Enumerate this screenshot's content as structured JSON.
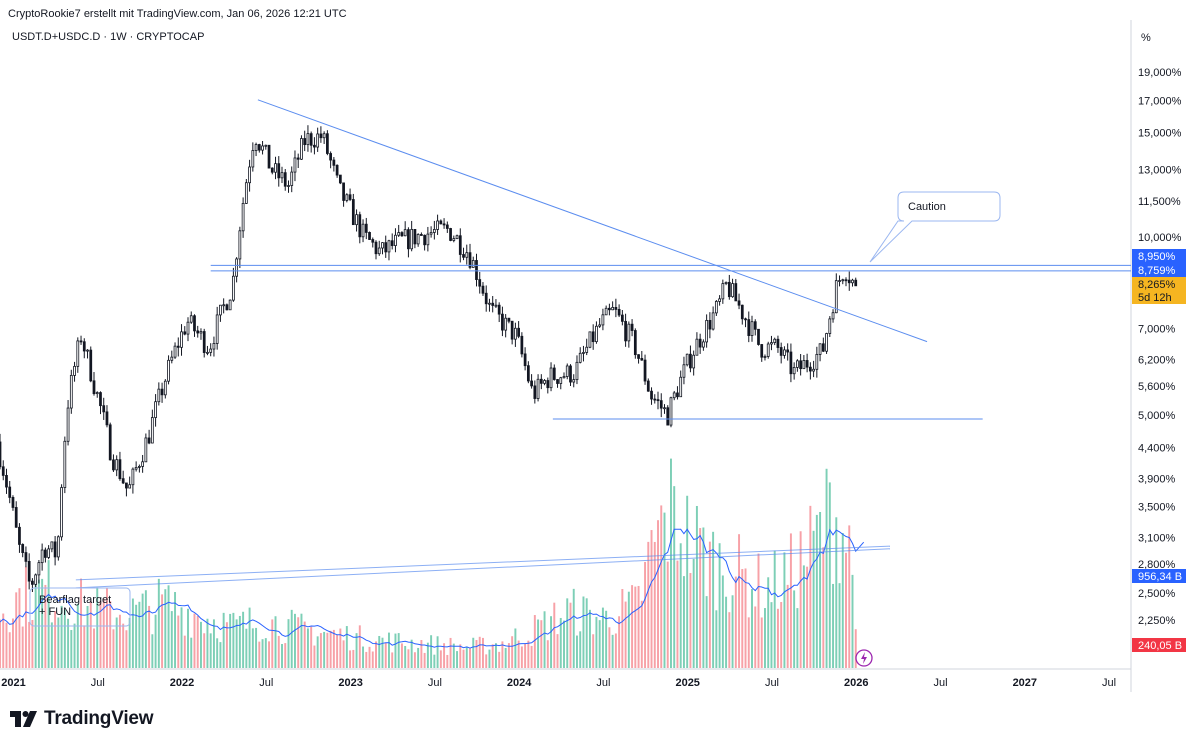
{
  "header": {
    "credit": "CryptoRookie7 erstellt mit TradingView.com, Jan 06, 2026 12:21 UTC",
    "symbol": "USDT.D+USDC.D · 1W · CRYPTOCAP"
  },
  "brand": {
    "name": "TradingView",
    "icon": "tradingview-logo-icon",
    "color": "#131722"
  },
  "colors": {
    "up": "#ffffff",
    "down": "#131722",
    "trendline": "#5b8def",
    "vol_up": "#7dcfb6",
    "vol_down": "#f7a1a7",
    "ma": "#2962ff",
    "price_tag": "#f5b521",
    "level_tag": "#2962ff",
    "vol_tag": "#f23645"
  },
  "chart_data": {
    "type": "candlestick",
    "title": "USDT.D+USDC.D · 1W · CRYPTOCAP",
    "yscale": "log",
    "ylim": [
      2.0,
      21.5
    ],
    "y_unit": "%",
    "y_ticks": [
      "19,000%",
      "17,000%",
      "15,000%",
      "13,000%",
      "11,500%",
      "10,000%",
      "7,000%",
      "6,200%",
      "5,600%",
      "5,000%",
      "4,400%",
      "3,900%",
      "3,500%",
      "3,100%",
      "2,800%",
      "2,500%",
      "2,250%"
    ],
    "y_tick_values": [
      19.0,
      17.0,
      15.0,
      13.0,
      11.5,
      10.0,
      7.0,
      6.2,
      5.6,
      5.0,
      4.4,
      3.9,
      3.5,
      3.1,
      2.8,
      2.5,
      2.25
    ],
    "x_ticks": [
      "2021",
      "Jul",
      "2022",
      "Jul",
      "2023",
      "Jul",
      "2024",
      "Jul",
      "2025",
      "Jul",
      "2026",
      "Jul",
      "2027",
      "Jul"
    ],
    "x_tick_dates": [
      2021.0,
      2021.5,
      2022.0,
      2022.5,
      2023.0,
      2023.5,
      2024.0,
      2024.5,
      2025.0,
      2025.5,
      2026.0,
      2026.5,
      2027.0,
      2027.5
    ],
    "xlim": [
      2020.92,
      2027.63
    ],
    "price_path": [
      [
        2020.92,
        4.5
      ],
      [
        2021.05,
        3.0
      ],
      [
        2021.12,
        2.55
      ],
      [
        2021.2,
        3.0
      ],
      [
        2021.28,
        2.9
      ],
      [
        2021.34,
        5.2
      ],
      [
        2021.42,
        6.8
      ],
      [
        2021.5,
        5.6
      ],
      [
        2021.6,
        4.3
      ],
      [
        2021.7,
        3.7
      ],
      [
        2021.82,
        4.6
      ],
      [
        2021.95,
        6.1
      ],
      [
        2022.05,
        7.2
      ],
      [
        2022.18,
        6.5
      ],
      [
        2022.32,
        8.3
      ],
      [
        2022.45,
        15.0
      ],
      [
        2022.55,
        13.0
      ],
      [
        2022.65,
        12.2
      ],
      [
        2022.75,
        14.6
      ],
      [
        2022.85,
        14.8
      ],
      [
        2022.95,
        12.0
      ],
      [
        2023.1,
        10.0
      ],
      [
        2023.2,
        9.4
      ],
      [
        2023.3,
        9.8
      ],
      [
        2023.45,
        10.1
      ],
      [
        2023.6,
        10.3
      ],
      [
        2023.72,
        9.4
      ],
      [
        2023.85,
        7.5
      ],
      [
        2024.0,
        6.8
      ],
      [
        2024.1,
        5.4
      ],
      [
        2024.2,
        5.8
      ],
      [
        2024.35,
        5.9
      ],
      [
        2024.5,
        7.1
      ],
      [
        2024.58,
        7.5
      ],
      [
        2024.7,
        6.6
      ],
      [
        2024.8,
        5.4
      ],
      [
        2024.9,
        5.0
      ],
      [
        2025.05,
        6.4
      ],
      [
        2025.2,
        7.6
      ],
      [
        2025.25,
        8.3
      ],
      [
        2025.35,
        7.4
      ],
      [
        2025.45,
        6.5
      ],
      [
        2025.55,
        6.5
      ],
      [
        2025.65,
        5.9
      ],
      [
        2025.75,
        6.2
      ],
      [
        2025.82,
        6.4
      ],
      [
        2025.9,
        8.2
      ],
      [
        2025.95,
        8.9
      ],
      [
        2026.01,
        8.265
      ]
    ],
    "volume_path": [
      [
        2020.92,
        45
      ],
      [
        2021.05,
        55
      ],
      [
        2021.2,
        60
      ],
      [
        2021.35,
        50
      ],
      [
        2021.5,
        45
      ],
      [
        2021.7,
        42
      ],
      [
        2021.9,
        50
      ],
      [
        2022.1,
        40
      ],
      [
        2022.3,
        32
      ],
      [
        2022.5,
        36
      ],
      [
        2022.7,
        30
      ],
      [
        2022.9,
        26
      ],
      [
        2023.1,
        22
      ],
      [
        2023.3,
        20
      ],
      [
        2023.5,
        18
      ],
      [
        2023.7,
        16
      ],
      [
        2023.9,
        19
      ],
      [
        2024.1,
        30
      ],
      [
        2024.3,
        44
      ],
      [
        2024.5,
        38
      ],
      [
        2024.7,
        48
      ],
      [
        2024.8,
        95
      ],
      [
        2024.9,
        120
      ],
      [
        2025.0,
        100
      ],
      [
        2025.15,
        82
      ],
      [
        2025.3,
        72
      ],
      [
        2025.45,
        60
      ],
      [
        2025.6,
        70
      ],
      [
        2025.75,
        95
      ],
      [
        2025.85,
        120
      ],
      [
        2025.95,
        100
      ],
      [
        2026.01,
        40
      ]
    ],
    "horizontal_levels": [
      {
        "y": 8.95,
        "from": 2022.17,
        "to": 2027.63
      },
      {
        "y": 8.759,
        "from": 2022.17,
        "to": 2027.63
      },
      {
        "y": 4.92,
        "from": 2024.2,
        "to": 2026.75
      }
    ],
    "trendlines": [
      {
        "from": [
          2022.45,
          17.05
        ],
        "to": [
          2026.42,
          6.65
        ]
      },
      {
        "from": [
          2021.37,
          2.55
        ],
        "to": [
          2026.2,
          2.97
        ]
      },
      {
        "from": [
          2021.37,
          2.63
        ],
        "to": [
          2026.2,
          3.0
        ]
      }
    ],
    "price_labels": [
      {
        "text": "8,950%",
        "y": 8.95,
        "color": "#2962ff",
        "text_color": "#ffffff"
      },
      {
        "text": "8,759%",
        "y": 8.759,
        "color": "#2962ff",
        "text_color": "#ffffff"
      },
      {
        "text": "8,265%",
        "y": 8.265,
        "color": "#f5b521",
        "text_color": "#131722"
      },
      {
        "text": "5d 12h",
        "y": 7.85,
        "color": "#f5b521",
        "text_color": "#131722"
      },
      {
        "text": "956,34 B",
        "y": 2.56,
        "color": "#2962ff",
        "text_color": "#ffffff"
      },
      {
        "text": "240,05 B",
        "y": 2.11,
        "color": "#f23645",
        "text_color": "#ffffff"
      }
    ],
    "axis_unit_label": "%",
    "annotations": [
      {
        "text": "Caution",
        "date": 2025.85,
        "y": 11.3
      },
      {
        "text": "Bearflag target\n+ FUN",
        "date": 2020.99,
        "y": 2.4
      }
    ],
    "volume_ma_label": "",
    "last_price": 8.265,
    "countdown": "5d 12h"
  }
}
